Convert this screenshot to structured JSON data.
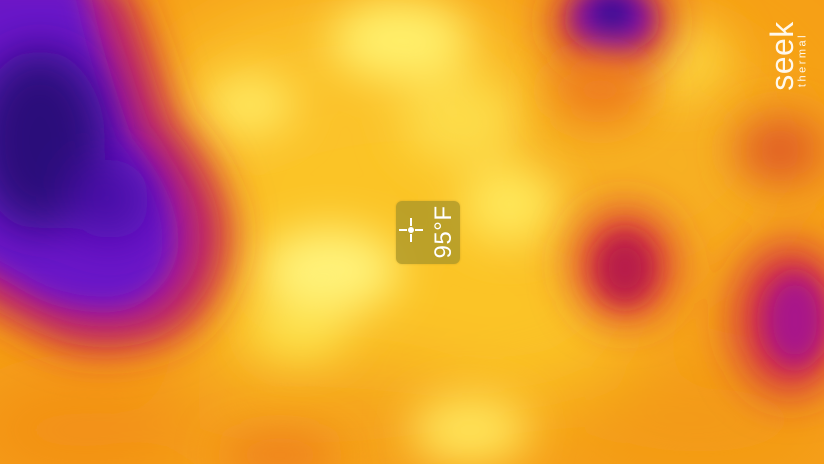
{
  "thermal_view": {
    "palette": "iron",
    "colors": {
      "coldest": "#2a0070",
      "cool": "#6a10c0",
      "mid": "#c8103a",
      "warm": "#f57a0c",
      "hot": "#fcd02a",
      "hottest": "#fffba0"
    }
  },
  "spot_meter": {
    "temperature": "95°F",
    "icon": "crosshair-icon"
  },
  "brand": {
    "wordmark": "seek",
    "sub": "thermal"
  }
}
